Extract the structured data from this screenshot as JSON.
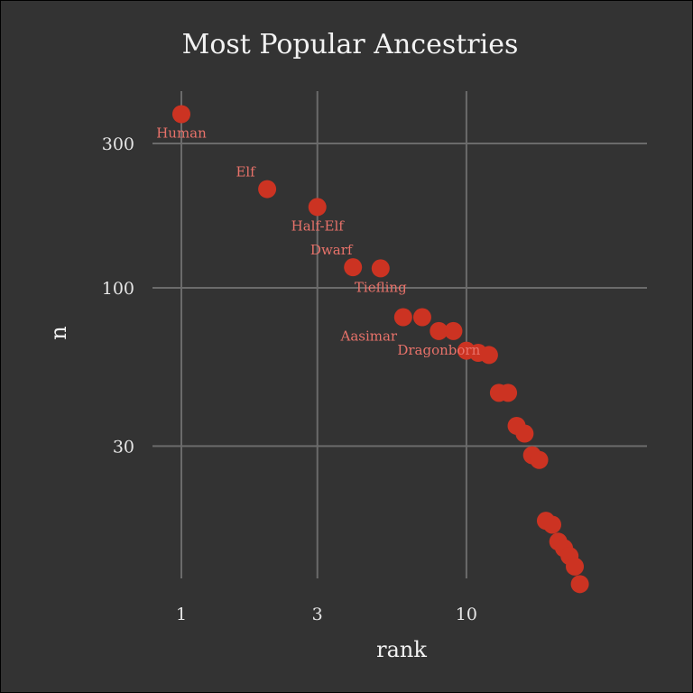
{
  "chart_data": {
    "type": "scatter",
    "title": "Most Popular Ancestries",
    "xlabel": "rank",
    "ylabel": "n",
    "x_scale": "log10",
    "y_scale": "log10",
    "xlim": [
      1,
      28
    ],
    "ylim": [
      9,
      500
    ],
    "x_ticks": [
      1,
      3,
      10
    ],
    "y_ticks": [
      30,
      100,
      300
    ],
    "grid": true,
    "colors": {
      "background": "#333333",
      "grid": "#6b6b6b",
      "point": "#cc3322",
      "label": "#e8726a",
      "text": "#f2f2f2"
    },
    "points": [
      {
        "x": 1,
        "y": 375,
        "label": "Human",
        "label_pos": "below"
      },
      {
        "x": 2,
        "y": 212,
        "label": "Elf",
        "label_pos": "above-left"
      },
      {
        "x": 3,
        "y": 185,
        "label": "Half-Elf",
        "label_pos": "below"
      },
      {
        "x": 4,
        "y": 117,
        "label": "Dwarf",
        "label_pos": "above-left"
      },
      {
        "x": 5,
        "y": 116,
        "label": "Tiefling",
        "label_pos": "below"
      },
      {
        "x": 6,
        "y": 80,
        "label": "Aasimar",
        "label_pos": "below-left"
      },
      {
        "x": 7,
        "y": 80,
        "label": "",
        "label_pos": ""
      },
      {
        "x": 8,
        "y": 72,
        "label": "Dragonborn",
        "label_pos": "below"
      },
      {
        "x": 9,
        "y": 72,
        "label": "",
        "label_pos": ""
      },
      {
        "x": 10,
        "y": 62,
        "label": "",
        "label_pos": ""
      },
      {
        "x": 11,
        "y": 61,
        "label": "",
        "label_pos": ""
      },
      {
        "x": 12,
        "y": 60,
        "label": "",
        "label_pos": ""
      },
      {
        "x": 13,
        "y": 45,
        "label": "",
        "label_pos": ""
      },
      {
        "x": 14,
        "y": 45,
        "label": "",
        "label_pos": ""
      },
      {
        "x": 15,
        "y": 35,
        "label": "",
        "label_pos": ""
      },
      {
        "x": 16,
        "y": 33,
        "label": "",
        "label_pos": ""
      },
      {
        "x": 17,
        "y": 28,
        "label": "",
        "label_pos": ""
      },
      {
        "x": 18,
        "y": 27,
        "label": "",
        "label_pos": ""
      },
      {
        "x": 19,
        "y": 17,
        "label": "",
        "label_pos": ""
      },
      {
        "x": 20,
        "y": 16.5,
        "label": "",
        "label_pos": ""
      },
      {
        "x": 21,
        "y": 14.5,
        "label": "",
        "label_pos": ""
      },
      {
        "x": 22,
        "y": 13.8,
        "label": "",
        "label_pos": ""
      },
      {
        "x": 23,
        "y": 13,
        "label": "",
        "label_pos": ""
      },
      {
        "x": 24,
        "y": 12,
        "label": "",
        "label_pos": ""
      },
      {
        "x": 25,
        "y": 10.5,
        "label": "",
        "label_pos": ""
      }
    ]
  }
}
